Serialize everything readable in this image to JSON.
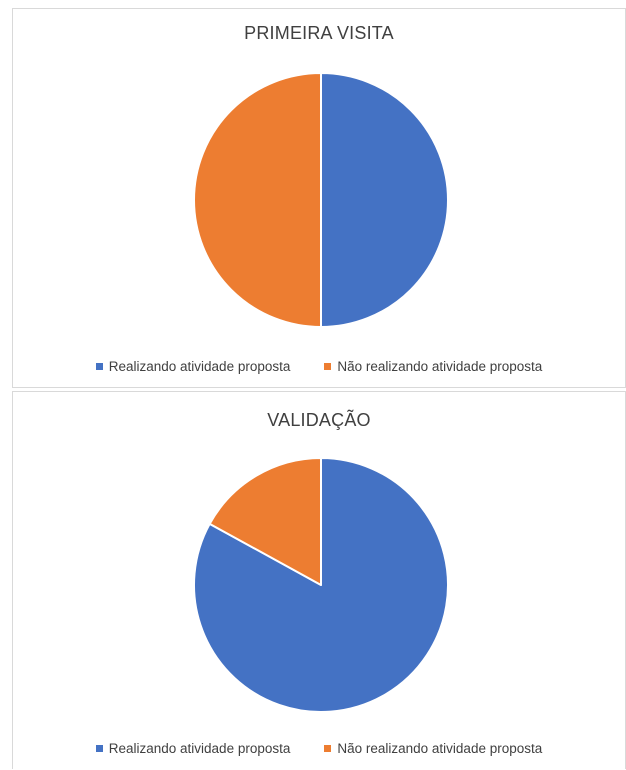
{
  "chart_data": [
    {
      "type": "pie",
      "title": "PRIMEIRA VISITA",
      "categories": [
        "Realizando atividade proposta",
        "Não realizando atividade proposta"
      ],
      "values": [
        50,
        50
      ],
      "colors": [
        "#4472c4",
        "#ed7d31"
      ],
      "legend": "bottom"
    },
    {
      "type": "pie",
      "title": "VALIDAÇÃO",
      "categories": [
        "Realizando atividade proposta",
        "Não realizando atividade proposta"
      ],
      "values": [
        83,
        17
      ],
      "colors": [
        "#4472c4",
        "#ed7d31"
      ],
      "legend": "bottom"
    }
  ]
}
